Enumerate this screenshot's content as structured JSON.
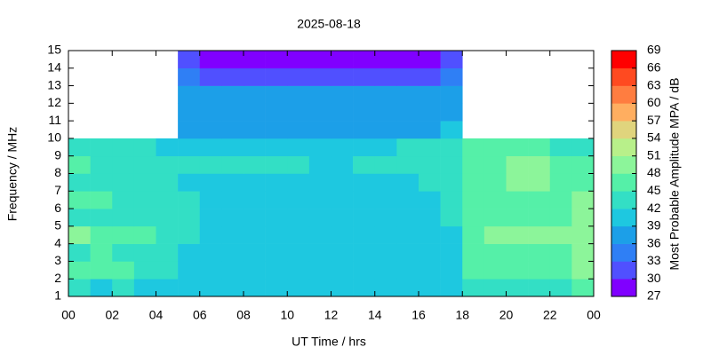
{
  "chart_data": {
    "type": "heatmap",
    "title": "2025-08-18",
    "x_label": "UT Time / hrs",
    "y_label": "Frequency / MHz",
    "xlim": [
      0,
      24
    ],
    "ylim": [
      1,
      15
    ],
    "xticks": [
      {
        "value": 0,
        "label": "00"
      },
      {
        "value": 2,
        "label": "02"
      },
      {
        "value": 4,
        "label": "04"
      },
      {
        "value": 6,
        "label": "06"
      },
      {
        "value": 8,
        "label": "08"
      },
      10,
      12,
      14,
      16,
      18,
      20,
      22,
      {
        "value": 24,
        "label": "00"
      }
    ],
    "yticks": [
      1,
      2,
      3,
      4,
      5,
      6,
      7,
      8,
      9,
      10,
      11,
      12,
      13,
      14,
      15
    ],
    "xbins": [
      0,
      1,
      2,
      3,
      4,
      5,
      6,
      7,
      8,
      9,
      10,
      11,
      12,
      13,
      14,
      15,
      16,
      17,
      18,
      19,
      20,
      21,
      22,
      23,
      24
    ],
    "ybins": [
      1,
      2,
      3,
      4,
      5,
      6,
      7,
      8,
      9,
      10,
      11,
      12,
      13,
      14,
      15
    ],
    "z": [
      [
        42,
        41,
        42,
        41,
        40,
        40,
        40,
        40,
        39,
        40,
        40,
        40,
        40,
        40,
        40,
        40,
        40,
        40,
        42,
        44,
        43,
        44,
        44,
        45
      ],
      [
        46,
        45,
        45,
        44,
        42,
        41,
        40,
        40,
        40,
        40,
        40,
        40,
        40,
        40,
        40,
        40,
        40,
        41,
        46,
        47,
        46,
        47,
        47,
        48
      ],
      [
        44,
        45,
        44,
        43,
        42,
        41,
        40,
        40,
        39,
        39,
        40,
        40,
        40,
        40,
        40,
        40,
        40,
        41,
        45,
        46,
        47,
        46,
        46,
        48
      ],
      [
        48,
        47,
        46,
        45,
        44,
        42,
        41,
        40,
        39,
        39,
        39,
        39,
        39,
        40,
        40,
        40,
        40,
        41,
        47,
        48,
        49,
        48,
        49,
        50
      ],
      [
        44,
        44,
        43,
        43,
        43,
        42,
        41,
        40,
        40,
        40,
        39,
        40,
        40,
        40,
        40,
        40,
        40,
        42,
        46,
        46,
        47,
        47,
        47,
        48
      ],
      [
        46,
        45,
        44,
        44,
        43,
        42,
        41,
        41,
        40,
        40,
        40,
        40,
        40,
        40,
        41,
        41,
        41,
        43,
        46,
        47,
        46,
        47,
        47,
        48
      ],
      [
        44,
        44,
        44,
        43,
        42,
        41,
        41,
        41,
        41,
        41,
        41,
        40,
        41,
        41,
        41,
        41,
        42,
        43,
        46,
        47,
        48,
        48,
        47,
        46
      ],
      [
        45,
        44,
        43,
        43,
        42,
        42,
        42,
        42,
        42,
        42,
        42,
        41,
        41,
        42,
        42,
        42,
        43,
        44,
        47,
        47,
        48,
        48,
        47,
        46
      ],
      [
        43,
        42,
        42,
        42,
        41,
        41,
        41,
        41,
        41,
        41,
        41,
        41,
        41,
        41,
        41,
        42,
        43,
        44,
        45,
        45,
        45,
        45,
        44,
        43
      ],
      [
        null,
        null,
        null,
        null,
        null,
        38,
        38,
        38,
        38,
        38,
        38,
        38,
        38,
        38,
        38,
        38,
        38,
        39,
        null,
        null,
        null,
        null,
        null,
        null
      ],
      [
        null,
        null,
        null,
        null,
        null,
        37,
        37,
        37,
        37,
        37,
        37,
        37,
        37,
        37,
        37,
        37,
        37,
        38,
        null,
        null,
        null,
        null,
        null,
        null
      ],
      [
        null,
        null,
        null,
        null,
        null,
        36,
        36,
        36,
        36,
        36,
        36,
        36,
        36,
        36,
        36,
        36,
        36,
        37,
        null,
        null,
        null,
        null,
        null,
        null
      ],
      [
        null,
        null,
        null,
        null,
        null,
        33,
        32,
        32,
        31,
        31,
        32,
        32,
        32,
        32,
        32,
        32,
        32,
        33,
        null,
        null,
        null,
        null,
        null,
        null
      ],
      [
        null,
        null,
        null,
        null,
        null,
        30,
        29,
        29,
        28,
        28,
        29,
        29,
        29,
        29,
        29,
        29,
        29,
        30,
        null,
        null,
        null,
        null,
        null,
        null
      ]
    ],
    "colorbar": {
      "label": "Most Probable Amplitude MPA / dB",
      "lim": [
        27,
        69
      ],
      "ticks": [
        27,
        30,
        33,
        36,
        39,
        42,
        45,
        48,
        51,
        54,
        57,
        60,
        63,
        66,
        69
      ],
      "colors": [
        "#8000ff",
        "#5050ff",
        "#2f7ff5",
        "#1c9fe8",
        "#1ec8e0",
        "#33dfc5",
        "#55f0a8",
        "#8cf59a",
        "#b8f08a",
        "#e0d47d",
        "#ffae60",
        "#ff7d40",
        "#ff4a20",
        "#ff0000"
      ]
    }
  }
}
